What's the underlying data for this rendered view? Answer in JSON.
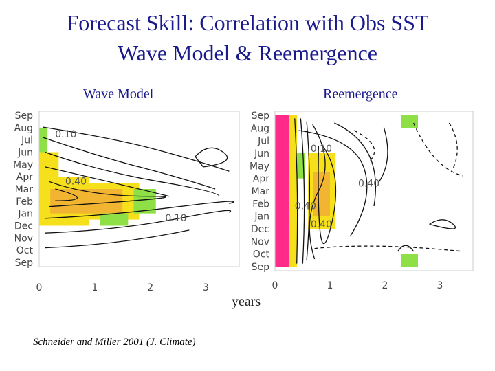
{
  "title_line1": "Forecast Skill: Correlation with Obs SST",
  "title_line2": "Wave Model & Reemergence",
  "citation": "Schneider and Miller 2001 (J. Climate)",
  "chart_data": {
    "type": "heatmap",
    "xlabel": "years",
    "y_categories": [
      "Sep",
      "Aug",
      "Jul",
      "Jun",
      "May",
      "Apr",
      "Mar",
      "Feb",
      "Jan",
      "Dec",
      "Nov",
      "Oct",
      "Sep"
    ],
    "x_ticks": [
      0,
      1,
      2,
      3
    ],
    "xlim": [
      0,
      3.6
    ],
    "colors": {
      "high": "#f2b531",
      "mid": "#f6e01c",
      "low": "#8ee046",
      "peak": "#ff2a8a"
    },
    "panels": [
      {
        "name": "Wave Model",
        "contour_labels": [
          "0.10",
          "0.40",
          "0.10"
        ],
        "high_skill_cells": [
          {
            "x0": 0.0,
            "x1": 0.15,
            "m0": 1,
            "m1": 5,
            "level": "low"
          },
          {
            "x0": 0.0,
            "x1": 0.35,
            "m0": 3,
            "m1": 9,
            "level": "mid"
          },
          {
            "x0": 0.0,
            "x1": 0.9,
            "m0": 5,
            "m1": 9,
            "level": "mid"
          },
          {
            "x0": 0.1,
            "x1": 1.8,
            "m0": 5.5,
            "m1": 8.5,
            "level": "mid"
          },
          {
            "x0": 0.2,
            "x1": 1.5,
            "m0": 6,
            "m1": 8,
            "level": "high"
          },
          {
            "x0": 1.1,
            "x1": 1.6,
            "m0": 8,
            "m1": 9,
            "level": "low"
          },
          {
            "x0": 1.7,
            "x1": 2.1,
            "m0": 6,
            "m1": 8,
            "level": "low"
          }
        ]
      },
      {
        "name": "Reemergence",
        "contour_labels": [
          "0.10",
          "0.40",
          "0.40",
          "0.40"
        ],
        "high_skill_cells": [
          {
            "x0": 0.0,
            "x1": 0.25,
            "m0": 0,
            "m1": 12,
            "level": "peak"
          },
          {
            "x0": 0.25,
            "x1": 0.4,
            "m0": 0,
            "m1": 12,
            "level": "mid"
          },
          {
            "x0": 0.4,
            "x1": 0.55,
            "m0": 3,
            "m1": 5,
            "level": "low"
          },
          {
            "x0": 0.6,
            "x1": 1.1,
            "m0": 3,
            "m1": 9,
            "level": "mid"
          },
          {
            "x0": 0.7,
            "x1": 1.0,
            "m0": 4.5,
            "m1": 8,
            "level": "high"
          },
          {
            "x0": 2.3,
            "x1": 2.6,
            "m0": 0,
            "m1": 1,
            "level": "low"
          },
          {
            "x0": 2.3,
            "x1": 2.6,
            "m0": 11,
            "m1": 12,
            "level": "low"
          }
        ]
      }
    ]
  }
}
